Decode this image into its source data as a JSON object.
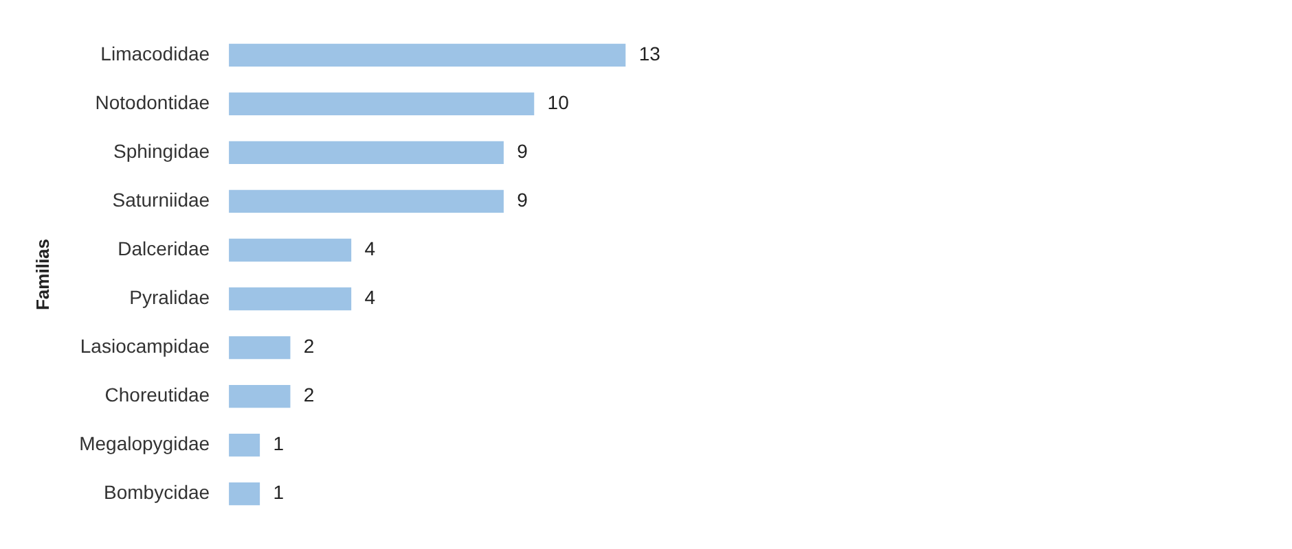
{
  "chart_data": {
    "type": "bar",
    "orientation": "horizontal",
    "ylabel": "Familias",
    "categories": [
      "Limacodidae",
      "Notodontidae",
      "Sphingidae",
      "Saturniidae",
      "Dalceridae",
      "Pyralidae",
      "Lasiocampidae",
      "Choreutidae",
      "Megalopygidae",
      "Bombycidae"
    ],
    "values": [
      13,
      10,
      9,
      9,
      4,
      4,
      2,
      2,
      1,
      1
    ],
    "color": "#9dc3e6",
    "data_labels": true,
    "legend": false
  }
}
